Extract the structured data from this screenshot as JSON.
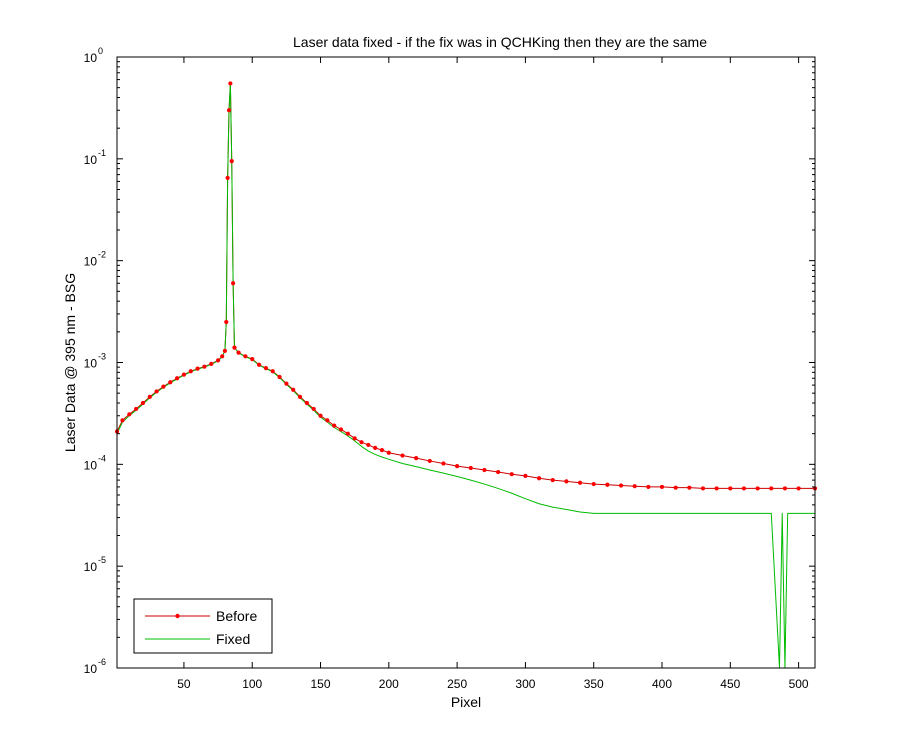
{
  "chart_data": {
    "type": "line",
    "title": "Laser data fixed - if the fix was in QCHKing then they are the same",
    "xlabel": "Pixel",
    "ylabel": "Laser Data @ 395 nm - BSG",
    "xlim": [
      1,
      512
    ],
    "ylim": [
      1e-06,
      1
    ],
    "yscale": "log",
    "grid": false,
    "legend_position": "bottom-left",
    "x_ticks": [
      50,
      100,
      150,
      200,
      250,
      300,
      350,
      400,
      450,
      500
    ],
    "y_ticks": [
      {
        "value": 1e-06,
        "base": "10",
        "exp": "-6"
      },
      {
        "value": 1e-05,
        "base": "10",
        "exp": "-5"
      },
      {
        "value": 0.0001,
        "base": "10",
        "exp": "-4"
      },
      {
        "value": 0.001,
        "base": "10",
        "exp": "-3"
      },
      {
        "value": 0.01,
        "base": "10",
        "exp": "-2"
      },
      {
        "value": 0.1,
        "base": "10",
        "exp": "-1"
      },
      {
        "value": 1,
        "base": "10",
        "exp": "0"
      }
    ],
    "series": [
      {
        "name": "Before",
        "color": "#cc0000",
        "marker_color": "#ff0000",
        "marker": "dot",
        "points": [
          [
            1,
            0.00021
          ],
          [
            5,
            0.00027
          ],
          [
            10,
            0.00031
          ],
          [
            15,
            0.00035
          ],
          [
            20,
            0.0004
          ],
          [
            25,
            0.00046
          ],
          [
            30,
            0.00052
          ],
          [
            35,
            0.00058
          ],
          [
            40,
            0.00064
          ],
          [
            45,
            0.0007
          ],
          [
            50,
            0.00076
          ],
          [
            55,
            0.00082
          ],
          [
            60,
            0.00087
          ],
          [
            65,
            0.00091
          ],
          [
            70,
            0.00097
          ],
          [
            75,
            0.00105
          ],
          [
            78,
            0.00115
          ],
          [
            80,
            0.0013
          ],
          [
            81,
            0.0025
          ],
          [
            82,
            0.065
          ],
          [
            83,
            0.3
          ],
          [
            84,
            0.55
          ],
          [
            85,
            0.095
          ],
          [
            86,
            0.006
          ],
          [
            87,
            0.0014
          ],
          [
            90,
            0.00125
          ],
          [
            95,
            0.00115
          ],
          [
            100,
            0.00108
          ],
          [
            105,
            0.00095
          ],
          [
            110,
            0.00088
          ],
          [
            115,
            0.00082
          ],
          [
            120,
            0.00072
          ],
          [
            125,
            0.00062
          ],
          [
            130,
            0.00054
          ],
          [
            135,
            0.00046
          ],
          [
            140,
            0.0004
          ],
          [
            145,
            0.00035
          ],
          [
            150,
            0.0003
          ],
          [
            155,
            0.00027
          ],
          [
            160,
            0.00024
          ],
          [
            165,
            0.00022
          ],
          [
            170,
            0.0002
          ],
          [
            175,
            0.00018
          ],
          [
            180,
            0.000165
          ],
          [
            185,
            0.000155
          ],
          [
            190,
            0.000145
          ],
          [
            195,
            0.000138
          ],
          [
            200,
            0.00013
          ],
          [
            210,
            0.000122
          ],
          [
            220,
            0.000115
          ],
          [
            230,
            0.000108
          ],
          [
            240,
            0.000102
          ],
          [
            250,
            9.6e-05
          ],
          [
            260,
            9.2e-05
          ],
          [
            270,
            8.8e-05
          ],
          [
            280,
            8.4e-05
          ],
          [
            290,
            8e-05
          ],
          [
            300,
            7.7e-05
          ],
          [
            310,
            7.3e-05
          ],
          [
            320,
            7e-05
          ],
          [
            330,
            6.8e-05
          ],
          [
            340,
            6.6e-05
          ],
          [
            350,
            6.4e-05
          ],
          [
            360,
            6.3e-05
          ],
          [
            370,
            6.2e-05
          ],
          [
            380,
            6.1e-05
          ],
          [
            390,
            6e-05
          ],
          [
            400,
            6e-05
          ],
          [
            410,
            5.9e-05
          ],
          [
            420,
            5.9e-05
          ],
          [
            430,
            5.8e-05
          ],
          [
            440,
            5.8e-05
          ],
          [
            450,
            5.8e-05
          ],
          [
            460,
            5.8e-05
          ],
          [
            470,
            5.8e-05
          ],
          [
            480,
            5.8e-05
          ],
          [
            490,
            5.8e-05
          ],
          [
            500,
            5.8e-05
          ],
          [
            512,
            5.8e-05
          ]
        ]
      },
      {
        "name": "Fixed",
        "color": "#00bb00",
        "marker": "none",
        "points": [
          [
            1,
            0.0002
          ],
          [
            5,
            0.00026
          ],
          [
            10,
            0.0003
          ],
          [
            15,
            0.00034
          ],
          [
            20,
            0.00039
          ],
          [
            25,
            0.00045
          ],
          [
            30,
            0.00051
          ],
          [
            35,
            0.00057
          ],
          [
            40,
            0.00063
          ],
          [
            45,
            0.00069
          ],
          [
            50,
            0.00075
          ],
          [
            55,
            0.00081
          ],
          [
            60,
            0.00086
          ],
          [
            65,
            0.0009
          ],
          [
            70,
            0.00096
          ],
          [
            75,
            0.00104
          ],
          [
            78,
            0.00114
          ],
          [
            80,
            0.0013
          ],
          [
            81,
            0.0025
          ],
          [
            82,
            0.065
          ],
          [
            83,
            0.3
          ],
          [
            84,
            0.55
          ],
          [
            85,
            0.095
          ],
          [
            86,
            0.006
          ],
          [
            87,
            0.0014
          ],
          [
            90,
            0.00124
          ],
          [
            95,
            0.00114
          ],
          [
            100,
            0.00107
          ],
          [
            105,
            0.00094
          ],
          [
            110,
            0.00087
          ],
          [
            115,
            0.00081
          ],
          [
            120,
            0.00071
          ],
          [
            125,
            0.00061
          ],
          [
            130,
            0.00053
          ],
          [
            135,
            0.00045
          ],
          [
            140,
            0.00039
          ],
          [
            145,
            0.00034
          ],
          [
            150,
            0.00029
          ],
          [
            155,
            0.00026
          ],
          [
            160,
            0.00023
          ],
          [
            165,
            0.00021
          ],
          [
            170,
            0.00019
          ],
          [
            175,
            0.00017
          ],
          [
            180,
            0.00015
          ],
          [
            185,
            0.000135
          ],
          [
            190,
            0.000125
          ],
          [
            195,
            0.000118
          ],
          [
            200,
            0.000112
          ],
          [
            210,
            0.000102
          ],
          [
            220,
            9.5e-05
          ],
          [
            230,
            8.8e-05
          ],
          [
            240,
            8.2e-05
          ],
          [
            250,
            7.6e-05
          ],
          [
            260,
            7e-05
          ],
          [
            270,
            6.4e-05
          ],
          [
            280,
            5.8e-05
          ],
          [
            290,
            5.2e-05
          ],
          [
            300,
            4.6e-05
          ],
          [
            310,
            4.1e-05
          ],
          [
            320,
            3.8e-05
          ],
          [
            330,
            3.6e-05
          ],
          [
            340,
            3.4e-05
          ],
          [
            350,
            3.3e-05
          ],
          [
            360,
            3.3e-05
          ],
          [
            370,
            3.3e-05
          ],
          [
            380,
            3.3e-05
          ],
          [
            390,
            3.3e-05
          ],
          [
            400,
            3.3e-05
          ],
          [
            410,
            3.3e-05
          ],
          [
            420,
            3.3e-05
          ],
          [
            430,
            3.3e-05
          ],
          [
            440,
            3.3e-05
          ],
          [
            450,
            3.3e-05
          ],
          [
            460,
            3.3e-05
          ],
          [
            470,
            3.3e-05
          ],
          [
            480,
            3.3e-05
          ],
          [
            486,
            1e-06
          ],
          [
            488,
            3.3e-05
          ],
          [
            490,
            1e-06
          ],
          [
            492,
            3.3e-05
          ],
          [
            500,
            3.3e-05
          ],
          [
            512,
            3.3e-05
          ]
        ]
      }
    ]
  }
}
